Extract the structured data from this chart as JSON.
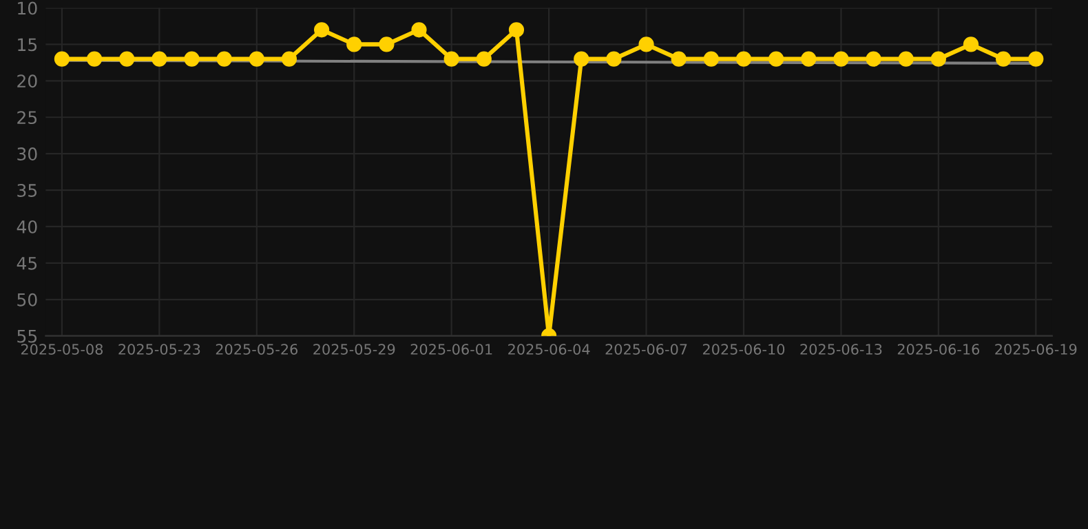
{
  "chart_data": {
    "type": "line",
    "categories": [
      "2025-05-08",
      null,
      null,
      "2025-05-23",
      null,
      null,
      "2025-05-26",
      null,
      null,
      "2025-05-29",
      null,
      null,
      "2025-06-01",
      null,
      null,
      "2025-06-04",
      null,
      null,
      "2025-06-07",
      null,
      null,
      "2025-06-10",
      null,
      null,
      "2025-06-13",
      null,
      null,
      "2025-06-16",
      null,
      null,
      "2025-06-19"
    ],
    "series": [
      {
        "color": "#ffd000",
        "marker": "circle",
        "values": [
          17,
          17,
          17,
          17,
          17,
          17,
          17,
          17,
          13,
          15,
          15,
          13,
          17,
          17,
          13,
          55,
          17,
          17,
          15,
          17,
          17,
          17,
          17,
          17,
          17,
          17,
          17,
          17,
          15,
          17,
          17
        ]
      },
      {
        "type": "line",
        "color": "#808080",
        "marker": "none",
        "values": [
          17.2,
          null,
          null,
          null,
          null,
          null,
          null,
          null,
          null,
          null,
          null,
          null,
          null,
          null,
          null,
          null,
          null,
          null,
          null,
          null,
          null,
          null,
          null,
          null,
          null,
          null,
          null,
          null,
          null,
          null,
          17.6
        ]
      }
    ],
    "ylim": [
      55,
      10
    ],
    "yticks": [
      10,
      15,
      20,
      25,
      30,
      35,
      40,
      45,
      50,
      55
    ],
    "grid": true,
    "line_style": "solid"
  }
}
